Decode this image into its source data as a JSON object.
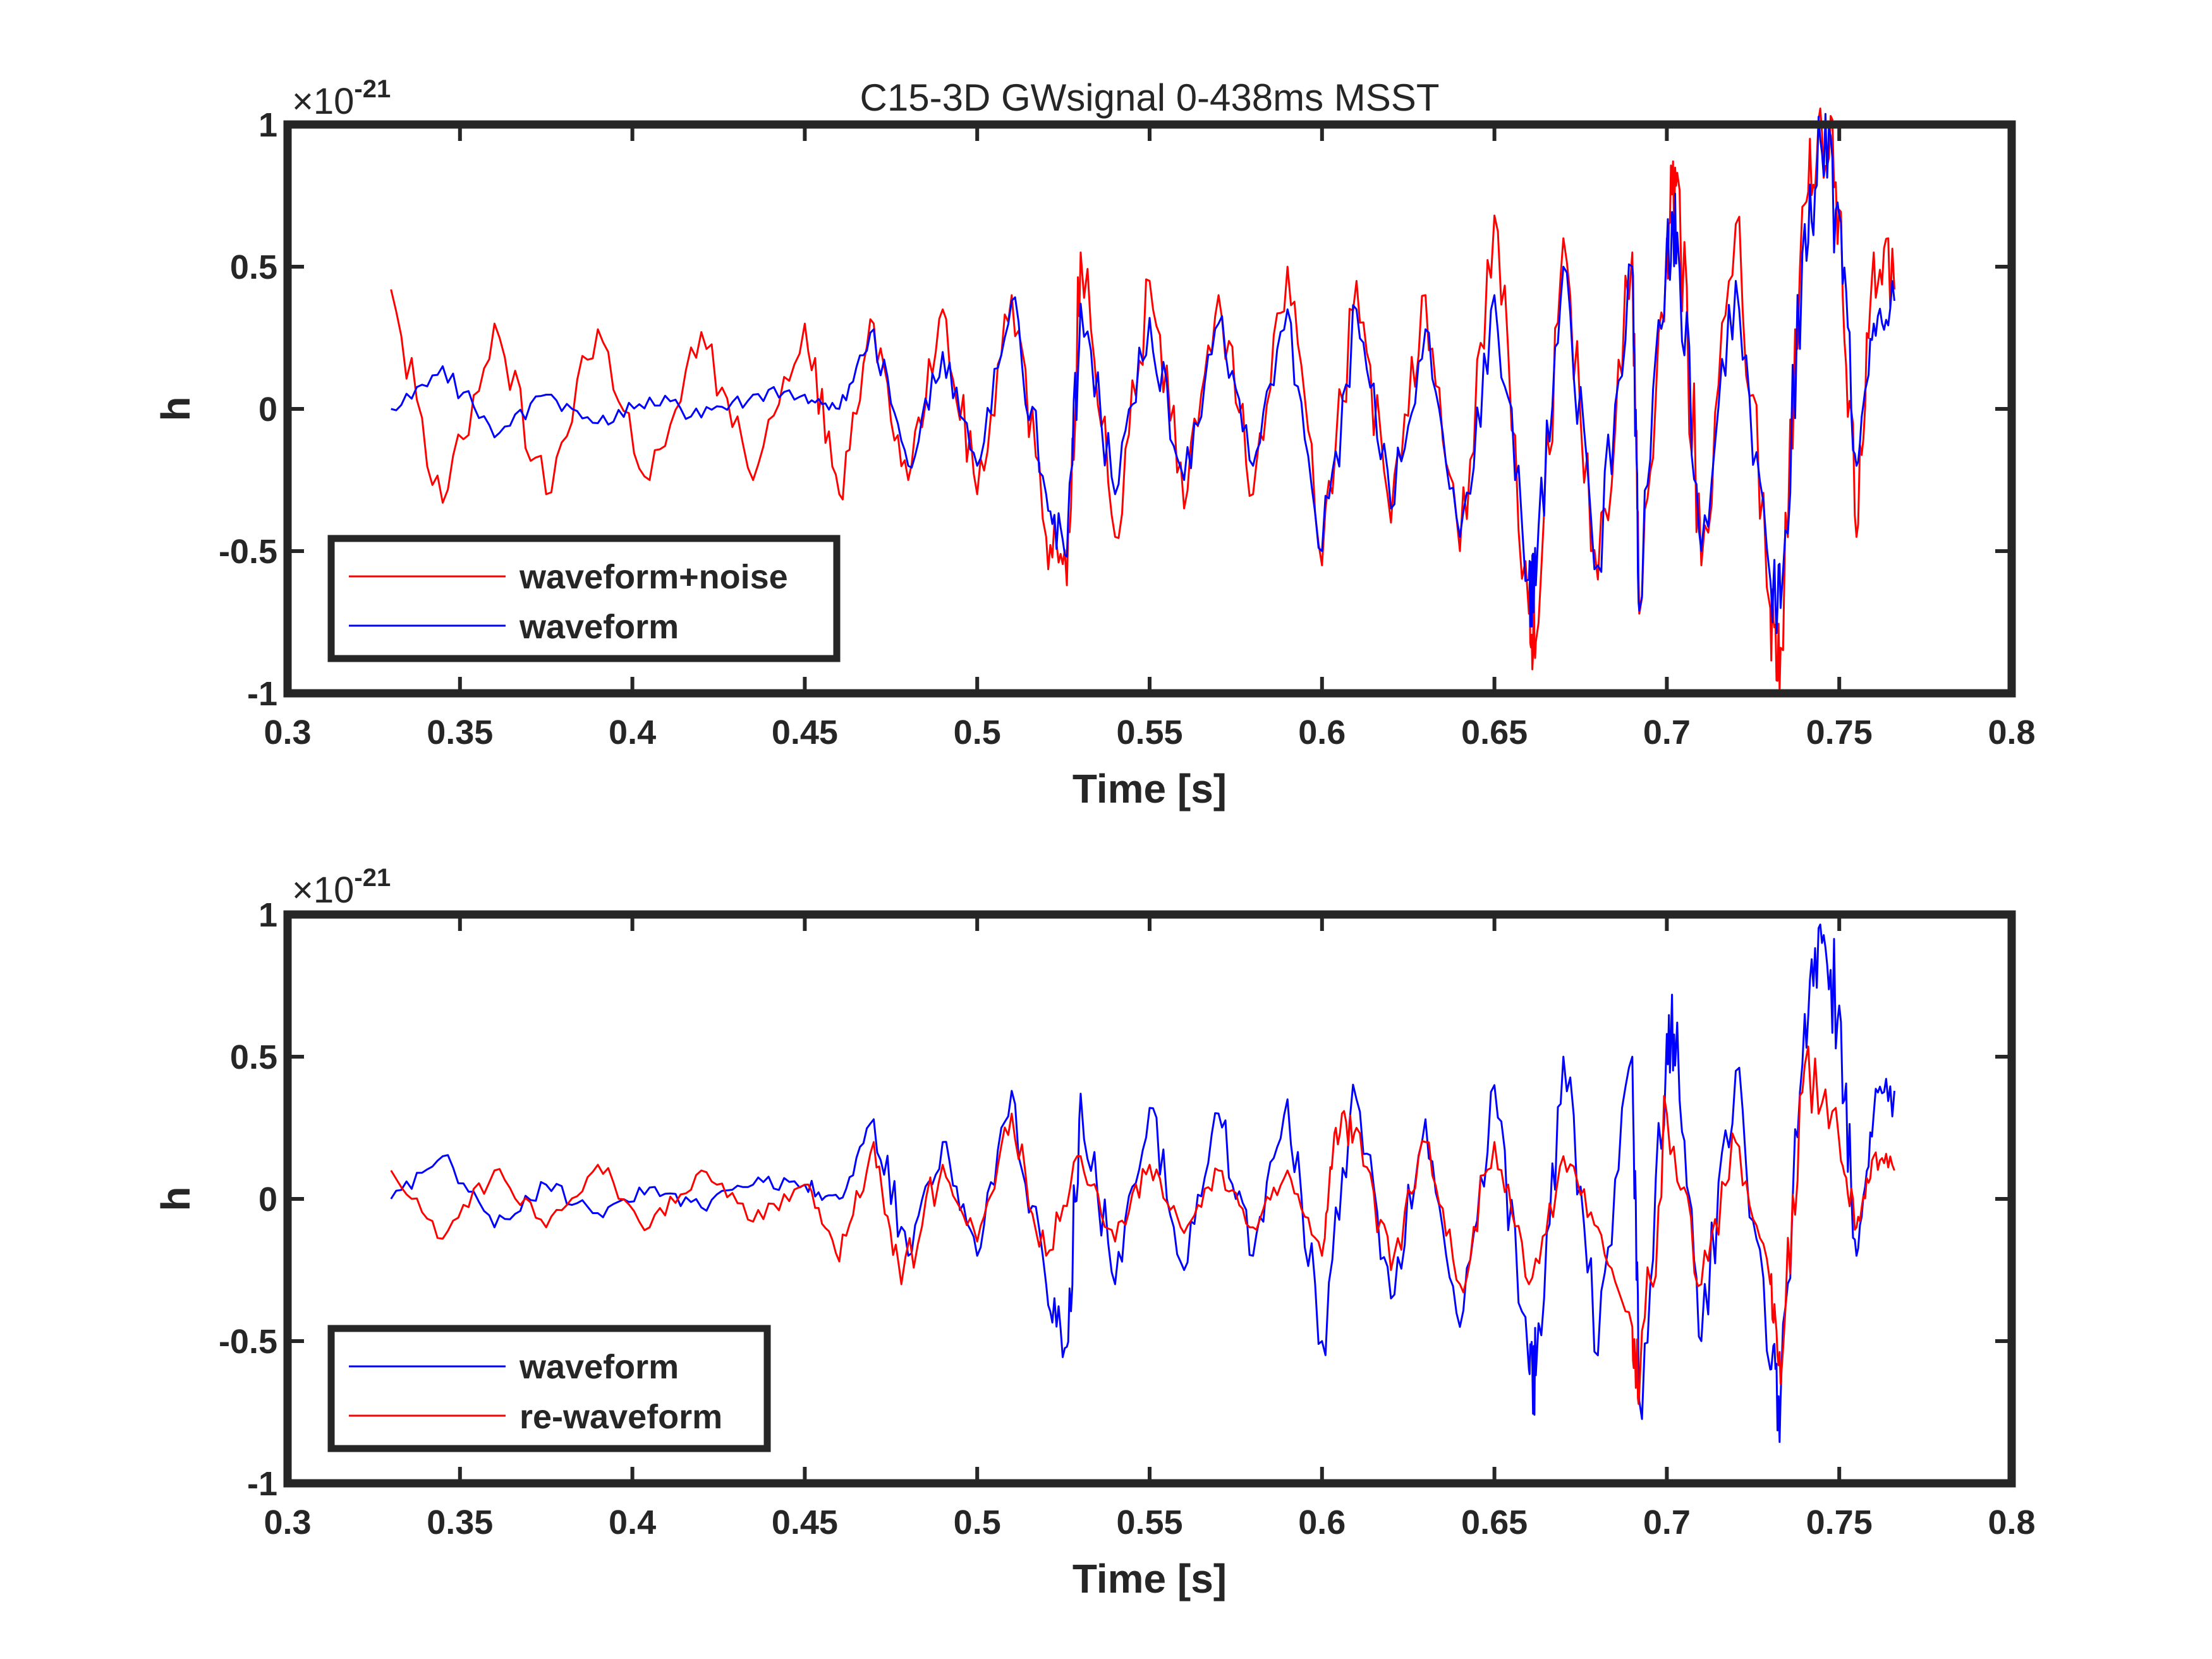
{
  "chart_data": [
    {
      "type": "line",
      "title": "C15-3D GWsignal 0-438ms MSST",
      "xlabel": "Time [s]",
      "ylabel": "h",
      "xlim": [
        0.3,
        0.8
      ],
      "ylim": [
        -1,
        1
      ],
      "y_exponent_base": "×10",
      "y_exponent_power": "-21",
      "xticks": [
        "0.3",
        "0.35",
        "0.4",
        "0.45",
        "0.5",
        "0.55",
        "0.6",
        "0.65",
        "0.7",
        "0.75",
        "0.8"
      ],
      "yticks": [
        "-1",
        "-0.5",
        "0",
        "0.5",
        "1"
      ],
      "legend_position": "bottom-left",
      "series": [
        {
          "name": "waveform+noise",
          "color": "#ff0000",
          "x": [
            0.33,
            0.345,
            0.36,
            0.375,
            0.39,
            0.405,
            0.42,
            0.435,
            0.45,
            0.46,
            0.47,
            0.48,
            0.49,
            0.5,
            0.51,
            0.52,
            0.526,
            0.53,
            0.54,
            0.55,
            0.56,
            0.57,
            0.58,
            0.59,
            0.6,
            0.61,
            0.62,
            0.63,
            0.64,
            0.65,
            0.66,
            0.662,
            0.67,
            0.68,
            0.69,
            0.692,
            0.7,
            0.703,
            0.71,
            0.72,
            0.73,
            0.733,
            0.74,
            0.745,
            0.75,
            0.755,
            0.76,
            0.766
          ],
          "values": [
            0.42,
            -0.33,
            0.3,
            -0.3,
            0.28,
            -0.25,
            0.27,
            -0.25,
            0.3,
            -0.3,
            0.3,
            -0.25,
            0.35,
            -0.3,
            0.4,
            -0.45,
            -0.62,
            0.55,
            -0.45,
            0.45,
            -0.35,
            0.4,
            -0.3,
            0.5,
            -0.55,
            0.45,
            -0.4,
            0.4,
            -0.5,
            0.68,
            -0.72,
            -0.82,
            0.6,
            -0.6,
            0.55,
            -0.72,
            0.6,
            0.83,
            -0.55,
            0.65,
            -0.7,
            -0.84,
            0.72,
            0.97,
            0.7,
            -0.45,
            0.55,
            0.42
          ]
        },
        {
          "name": "waveform",
          "color": "#0000ff",
          "x": [
            0.33,
            0.345,
            0.36,
            0.375,
            0.39,
            0.405,
            0.42,
            0.435,
            0.45,
            0.46,
            0.47,
            0.48,
            0.49,
            0.5,
            0.51,
            0.52,
            0.526,
            0.53,
            0.54,
            0.55,
            0.56,
            0.57,
            0.58,
            0.59,
            0.6,
            0.61,
            0.62,
            0.63,
            0.64,
            0.65,
            0.66,
            0.662,
            0.67,
            0.68,
            0.69,
            0.692,
            0.7,
            0.703,
            0.71,
            0.72,
            0.73,
            0.733,
            0.74,
            0.745,
            0.75,
            0.755,
            0.76,
            0.766
          ],
          "values": [
            0.0,
            0.15,
            -0.1,
            0.05,
            -0.05,
            0.04,
            -0.03,
            0.05,
            0.05,
            0.0,
            0.28,
            -0.2,
            0.2,
            -0.2,
            0.38,
            -0.3,
            -0.52,
            0.37,
            -0.3,
            0.32,
            -0.25,
            0.3,
            -0.2,
            0.35,
            -0.5,
            0.35,
            -0.35,
            0.28,
            -0.45,
            0.4,
            -0.6,
            -0.62,
            0.5,
            -0.55,
            0.5,
            -0.71,
            0.58,
            0.62,
            -0.5,
            0.45,
            -0.6,
            -0.7,
            0.65,
            0.9,
            0.68,
            -0.2,
            0.3,
            0.38
          ]
        }
      ]
    },
    {
      "type": "line",
      "xlabel": "Time [s]",
      "ylabel": "h",
      "xlim": [
        0.3,
        0.8
      ],
      "ylim": [
        -1,
        1
      ],
      "y_exponent_base": "×10",
      "y_exponent_power": "-21",
      "xticks": [
        "0.3",
        "0.35",
        "0.4",
        "0.45",
        "0.5",
        "0.55",
        "0.6",
        "0.65",
        "0.7",
        "0.75",
        "0.8"
      ],
      "yticks": [
        "-1",
        "-0.5",
        "0",
        "0.5",
        "1"
      ],
      "legend_position": "bottom-left",
      "series": [
        {
          "name": "waveform",
          "color": "#0000ff",
          "x": [
            0.33,
            0.345,
            0.36,
            0.375,
            0.39,
            0.405,
            0.42,
            0.435,
            0.45,
            0.46,
            0.47,
            0.48,
            0.49,
            0.5,
            0.51,
            0.52,
            0.526,
            0.53,
            0.54,
            0.55,
            0.56,
            0.57,
            0.58,
            0.59,
            0.6,
            0.61,
            0.62,
            0.63,
            0.64,
            0.65,
            0.66,
            0.662,
            0.67,
            0.68,
            0.69,
            0.692,
            0.7,
            0.703,
            0.71,
            0.72,
            0.73,
            0.733,
            0.74,
            0.745,
            0.75,
            0.755,
            0.76,
            0.766
          ],
          "values": [
            0.0,
            0.15,
            -0.1,
            0.05,
            -0.05,
            0.04,
            -0.03,
            0.05,
            0.05,
            0.0,
            0.28,
            -0.2,
            0.2,
            -0.2,
            0.38,
            -0.3,
            -0.52,
            0.37,
            -0.3,
            0.32,
            -0.25,
            0.3,
            -0.2,
            0.35,
            -0.5,
            0.35,
            -0.35,
            0.28,
            -0.45,
            0.4,
            -0.6,
            -0.62,
            0.5,
            -0.55,
            0.5,
            -0.71,
            0.58,
            0.62,
            -0.5,
            0.45,
            -0.6,
            -0.7,
            0.65,
            0.9,
            0.68,
            -0.2,
            0.3,
            0.38
          ]
        },
        {
          "name": "re-waveform",
          "color": "#ff0000",
          "x": [
            0.33,
            0.345,
            0.36,
            0.375,
            0.39,
            0.405,
            0.42,
            0.435,
            0.45,
            0.46,
            0.47,
            0.478,
            0.49,
            0.5,
            0.51,
            0.52,
            0.53,
            0.54,
            0.55,
            0.56,
            0.57,
            0.58,
            0.59,
            0.6,
            0.604,
            0.61,
            0.62,
            0.63,
            0.64,
            0.65,
            0.66,
            0.67,
            0.68,
            0.69,
            0.692,
            0.7,
            0.71,
            0.72,
            0.73,
            0.733,
            0.74,
            0.75,
            0.755,
            0.76,
            0.766
          ],
          "values": [
            0.1,
            -0.14,
            0.1,
            -0.1,
            0.12,
            -0.1,
            0.1,
            -0.08,
            0.05,
            -0.22,
            0.2,
            -0.3,
            0.12,
            -0.15,
            0.3,
            -0.2,
            0.15,
            -0.15,
            0.12,
            -0.12,
            0.1,
            -0.1,
            0.1,
            -0.2,
            0.25,
            0.25,
            -0.25,
            0.2,
            -0.3,
            0.2,
            -0.3,
            0.15,
            -0.1,
            -0.45,
            -0.68,
            0.3,
            -0.3,
            0.2,
            -0.3,
            -0.65,
            0.47,
            0.2,
            -0.1,
            0.15,
            0.1
          ]
        }
      ]
    }
  ]
}
